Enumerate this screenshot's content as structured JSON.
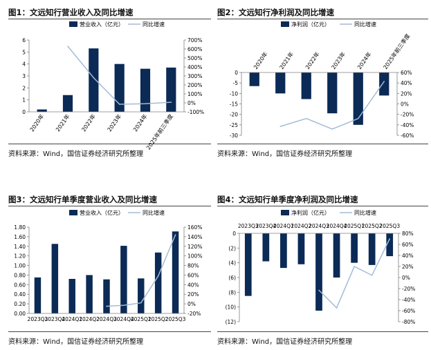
{
  "colors": {
    "bar": "#0b2a55",
    "line": "#a4bbd6",
    "axis": "#7f7f7f",
    "rule": "#444444"
  },
  "chart_data": [
    {
      "type": "bar",
      "title": "图1：文远知行营业收入及同比增速",
      "source": "资料来源：Wind，国信证券经济研究所整理",
      "categories": [
        "2020年",
        "2021年",
        "2022年",
        "2023年",
        "2024年",
        "2025年前三季度"
      ],
      "series": [
        {
          "name": "营业收入（亿元）",
          "kind": "bar",
          "axis": "left",
          "values": [
            0.2,
            1.4,
            5.3,
            4.0,
            3.6,
            3.7
          ]
        },
        {
          "name": "同比增速",
          "kind": "line",
          "axis": "right",
          "values": [
            null,
            630,
            280,
            -15,
            -10,
            7
          ]
        }
      ],
      "ylim_left": [
        0,
        6
      ],
      "yticks_left": [
        "0",
        "1",
        "2",
        "3",
        "4",
        "5",
        "6"
      ],
      "ylim_right": [
        -100,
        700
      ],
      "yticks_right": [
        "-100%",
        "0%",
        "100%",
        "200%",
        "300%",
        "400%",
        "500%",
        "600%",
        "700%"
      ],
      "category_axis": "bottom"
    },
    {
      "type": "bar",
      "title": "图2：文远知行净利润及同比增速",
      "source": "资料来源：Wind，国信证券经济研究所整理",
      "categories": [
        "2020年",
        "2021年",
        "2022年",
        "2023年",
        "2024年",
        "2025年前三季度"
      ],
      "series": [
        {
          "name": "净利润（亿元）",
          "kind": "bar",
          "axis": "left",
          "values": [
            -6.5,
            -10,
            -12.7,
            -19.5,
            -25,
            -11
          ]
        },
        {
          "name": "同比增速",
          "kind": "line",
          "axis": "right",
          "values": [
            null,
            -43,
            -28,
            -48,
            -28,
            43
          ]
        }
      ],
      "ylim_left": [
        -30,
        0
      ],
      "yticks_left": [
        "0",
        "-5",
        "-10",
        "-15",
        "-20",
        "-25",
        "-30"
      ],
      "ylim_right": [
        -60,
        60
      ],
      "yticks_right": [
        "60%",
        "40%",
        "20%",
        "0%",
        "-20%",
        "-40%",
        "-60%"
      ],
      "category_axis": "top"
    },
    {
      "type": "bar",
      "title": "图3：文远知行单季度营业收入及同比增速",
      "source": "资料来源：Wind，国信证券经济研究所整理",
      "categories": [
        "2023Q3",
        "2023Q4",
        "2024Q1",
        "2024Q2",
        "2024Q3",
        "2024Q4",
        "2025Q1",
        "2025Q2",
        "2025Q3"
      ],
      "series": [
        {
          "name": "营业收入（亿元）",
          "kind": "bar",
          "axis": "left",
          "values": [
            0.75,
            1.45,
            0.72,
            0.8,
            0.71,
            1.41,
            0.73,
            1.27,
            1.71
          ]
        },
        {
          "name": "同比增速",
          "kind": "line",
          "axis": "right",
          "values": [
            null,
            null,
            null,
            null,
            -5,
            -3,
            2,
            58,
            144
          ]
        }
      ],
      "ylim_left": [
        0,
        1.8
      ],
      "yticks_left": [
        "0.00",
        "0.20",
        "0.40",
        "0.60",
        "0.80",
        "1.00",
        "1.20",
        "1.40",
        "1.60",
        "1.80"
      ],
      "ylim_right": [
        -20,
        160
      ],
      "yticks_right": [
        "-20%",
        "0%",
        "20%",
        "40%",
        "60%",
        "80%",
        "100%",
        "120%",
        "140%",
        "160%"
      ],
      "category_axis": "bottom"
    },
    {
      "type": "bar",
      "title": "图4：文远知行单季度净利润及同比增速",
      "source": "资料来源：Wind，国信证券经济研究所整理",
      "categories": [
        "2023Q3",
        "2023Q4",
        "2024Q1",
        "2024Q2",
        "2024Q3",
        "2024Q4",
        "2025Q1",
        "2025Q2",
        "2025Q3"
      ],
      "series": [
        {
          "name": "净利润（亿元）",
          "kind": "bar",
          "axis": "left",
          "values": [
            -8.5,
            -3.8,
            -4.7,
            -4.2,
            -10.5,
            -6.0,
            -4.0,
            -4.3,
            -3.1
          ]
        },
        {
          "name": "同比增速",
          "kind": "line",
          "axis": "right",
          "values": [
            null,
            null,
            null,
            null,
            -23,
            -55,
            20,
            4,
            70
          ]
        }
      ],
      "ylim_left": [
        -12,
        0
      ],
      "yticks_left": [
        "0",
        "(2)",
        "(4)",
        "(6)",
        "(8)",
        "(10)",
        "(12)"
      ],
      "ylim_right": [
        -80,
        80
      ],
      "yticks_right": [
        "80%",
        "60%",
        "40%",
        "20%",
        "0%",
        "-20%",
        "-40%",
        "-60%",
        "-80%"
      ],
      "category_axis": "top"
    }
  ]
}
